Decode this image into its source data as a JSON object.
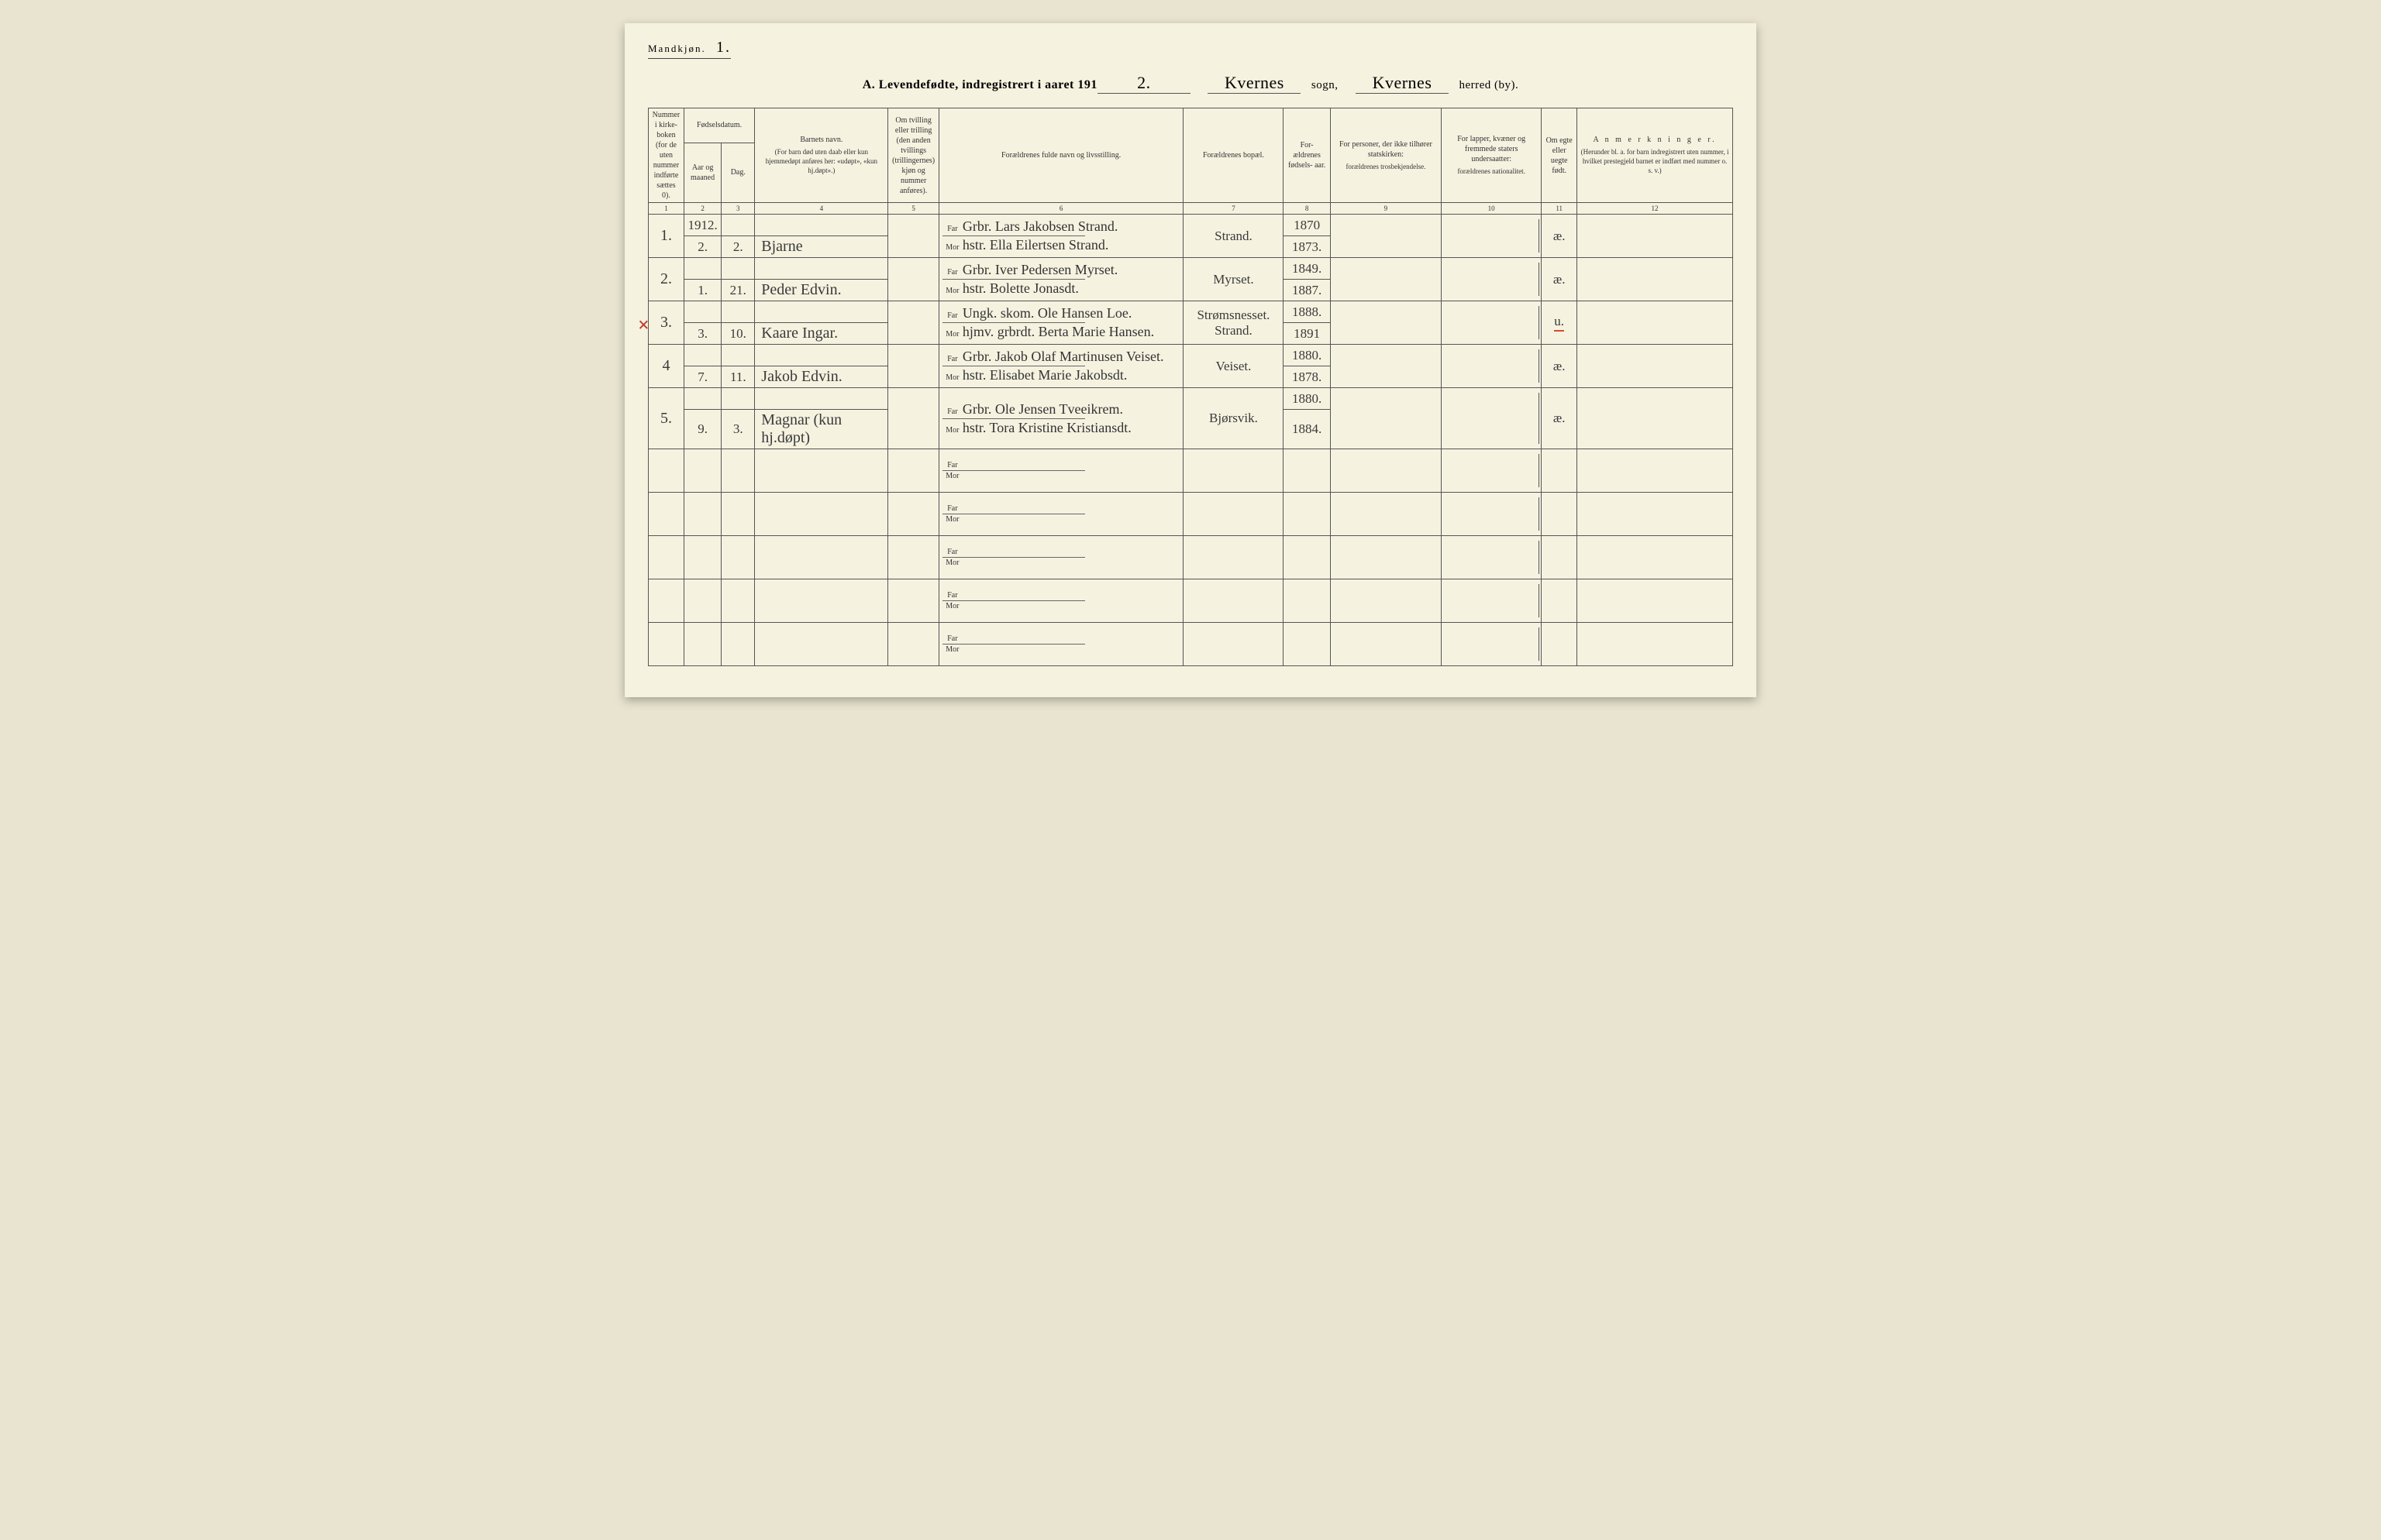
{
  "header": {
    "gender_label": "Mandkjøn.",
    "gender_page": "1.",
    "title_prefix": "A.",
    "title_text": "Levendefødte, indregistrert i aaret 191",
    "year_suffix": "2.",
    "sogn_value": "Kvernes",
    "sogn_label": "sogn,",
    "herred_value": "Kvernes",
    "herred_label": "herred (by)."
  },
  "columns": {
    "c1": "Nummer i kirke- boken (for de uten nummer indførte sættes 0).",
    "c2_group": "Fødselsdatum.",
    "c2a": "Aar og maaned",
    "c2b": "Dag.",
    "c4a": "Barnets navn.",
    "c4b": "(For barn død uten daab eller kun hjemmedøpt anføres her: «udøpt», «kun hj.døpt».)",
    "c5": "Om tvilling eller trilling (den anden tvillings (trillingernes) kjøn og nummer anføres).",
    "c6": "Forældrenes fulde navn og livsstilling.",
    "c7": "Forældrenes bopæl.",
    "c8": "For- ældrenes fødsels- aar.",
    "c9a": "For personer, der ikke tilhører statskirken:",
    "c9b": "forældrenes trosbekjendelse.",
    "c10a": "For lapper, kvæner og fremmede staters undersaatter:",
    "c10b": "forældrenes nationalitet.",
    "c11": "Om egte eller uegte født.",
    "c12a": "A n m e r k n i n g e r.",
    "c12b": "(Herunder bl. a. for barn indregistrert uten nummer, i hvilket prestegjeld barnet er indført med nummer o. s. v.)"
  },
  "colnums": [
    "1",
    "2",
    "3",
    "4",
    "5",
    "6",
    "7",
    "8",
    "9",
    "10",
    "11",
    "12"
  ],
  "labels": {
    "far": "Far",
    "mor": "Mor"
  },
  "rows": [
    {
      "num": "1.",
      "year_row": "1912.",
      "month": "2.",
      "day": "2.",
      "name": "Bjarne",
      "far": "Grbr. Lars Jakobsen Strand.",
      "mor": "hstr. Ella Eilertsen Strand.",
      "bopael": "Strand.",
      "far_year": "1870",
      "mor_year": "1873.",
      "c11": "æ.",
      "mark": false,
      "red_c11": false
    },
    {
      "num": "2.",
      "year_row": "",
      "month": "1.",
      "day": "21.",
      "name": "Peder Edvin.",
      "far": "Grbr. Iver Pedersen Myrset.",
      "mor": "hstr. Bolette Jonasdt.",
      "bopael": "Myrset.",
      "far_year": "1849.",
      "mor_year": "1887.",
      "c11": "æ.",
      "mark": false,
      "red_c11": false
    },
    {
      "num": "3.",
      "year_row": "",
      "month": "3.",
      "day": "10.",
      "name": "Kaare Ingar.",
      "far": "Ungk. skom. Ole Hansen Loe.",
      "mor": "hjmv. grbrdt. Berta Marie Hansen.",
      "bopael_far": "Strømsnesset.",
      "bopael": "Strand.",
      "far_year": "1888.",
      "mor_year": "1891",
      "c11": "u.",
      "mark": true,
      "red_c11": true
    },
    {
      "num": "4",
      "year_row": "",
      "month": "7.",
      "day": "11.",
      "name": "Jakob Edvin.",
      "far": "Grbr. Jakob Olaf Martinusen Veiset.",
      "mor": "hstr. Elisabet Marie Jakobsdt.",
      "bopael": "Veiset.",
      "far_year": "1880.",
      "mor_year": "1878.",
      "c11": "æ.",
      "mark": false,
      "red_c11": false
    },
    {
      "num": "5.",
      "year_row": "",
      "month": "9.",
      "day": "3.",
      "name": "Magnar (kun hj.døpt)",
      "far": "Grbr. Ole Jensen Tveeikrem.",
      "mor": "hstr. Tora Kristine Kristiansdt.",
      "bopael": "Bjørsvik.",
      "far_year": "1880.",
      "mor_year": "1884.",
      "c11": "æ.",
      "mark": false,
      "red_c11": false
    }
  ],
  "empty_rows": 5
}
